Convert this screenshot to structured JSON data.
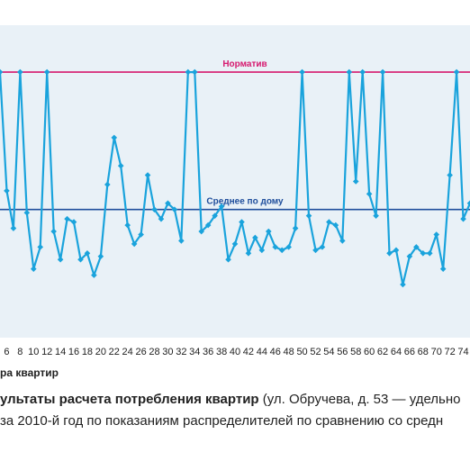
{
  "caption": {
    "bold": "ультаты расчета потребления квартир",
    "rest1": " (ул. Обручева, д. 53 — удельно",
    "line2": "за 2010-й год по показаниям распределителей по сравнению со средн"
  },
  "chart_data": {
    "type": "line",
    "xlabel": "ра квартир",
    "ylabel": "",
    "xlim": [
      5,
      75
    ],
    "ylim": [
      0,
      10
    ],
    "grid": false,
    "x_ticks": [
      6,
      8,
      10,
      12,
      14,
      16,
      18,
      20,
      22,
      24,
      26,
      28,
      30,
      32,
      34,
      36,
      38,
      40,
      42,
      44,
      46,
      48,
      50,
      52,
      54,
      56,
      58,
      60,
      62,
      64,
      66,
      68,
      70,
      72,
      74
    ],
    "reference_lines": [
      {
        "name": "Норматив",
        "value": 8.5,
        "color": "#d6186e"
      },
      {
        "name": "Среднее по дому",
        "value": 4.1,
        "color": "#1f4e9c"
      }
    ],
    "series": [
      {
        "color": "#1aa3dc",
        "x": [
          5,
          6,
          7,
          8,
          9,
          10,
          11,
          12,
          13,
          14,
          15,
          16,
          17,
          18,
          19,
          20,
          21,
          22,
          23,
          24,
          25,
          26,
          27,
          28,
          29,
          30,
          31,
          32,
          33,
          34,
          35,
          36,
          37,
          38,
          39,
          40,
          41,
          42,
          43,
          44,
          45,
          46,
          47,
          48,
          49,
          50,
          51,
          52,
          53,
          54,
          55,
          56,
          57,
          58,
          59,
          60,
          61,
          62,
          63,
          64,
          65,
          66,
          67,
          68,
          69,
          70,
          71,
          72,
          73,
          74,
          75
        ],
        "values": [
          8.5,
          4.7,
          3.5,
          8.5,
          4.0,
          2.2,
          2.9,
          8.5,
          3.4,
          2.5,
          3.8,
          3.7,
          2.5,
          2.7,
          2.0,
          2.6,
          4.9,
          6.4,
          5.5,
          3.6,
          3.0,
          3.3,
          5.2,
          4.1,
          3.8,
          4.3,
          4.1,
          3.1,
          8.5,
          8.5,
          3.4,
          3.6,
          3.9,
          4.2,
          2.5,
          3.0,
          3.7,
          2.7,
          3.2,
          2.8,
          3.4,
          2.9,
          2.8,
          2.9,
          3.5,
          8.5,
          3.9,
          2.8,
          2.9,
          3.7,
          3.6,
          3.1,
          8.5,
          5.0,
          8.5,
          4.6,
          3.9,
          8.5,
          2.7,
          2.8,
          1.7,
          2.6,
          2.9,
          2.7,
          2.7,
          3.3,
          2.2,
          5.2,
          8.5,
          3.8,
          4.3
        ]
      }
    ]
  }
}
